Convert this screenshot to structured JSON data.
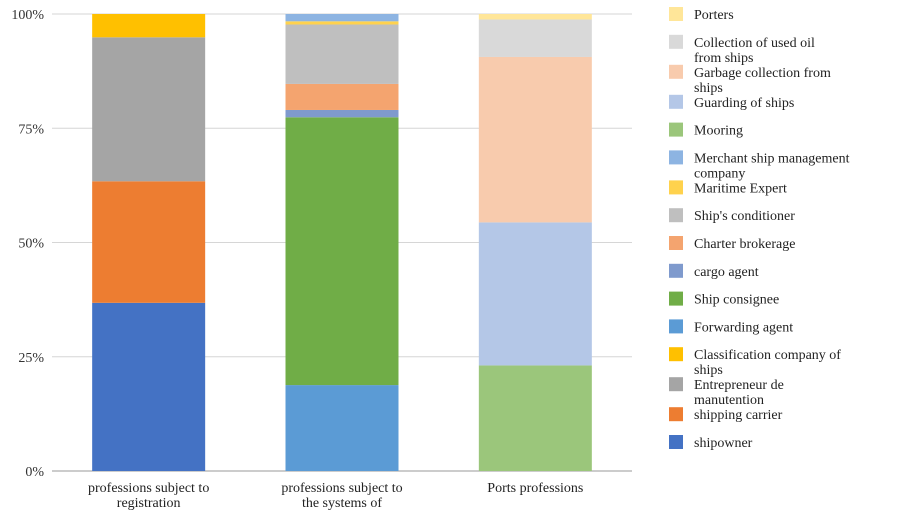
{
  "chart_data": {
    "type": "bar",
    "stacked": true,
    "normalized": true,
    "grid": true,
    "legend_placement": "right",
    "ylim": [
      0,
      100
    ],
    "yticks": [
      "0%",
      "25%",
      "50%",
      "75%",
      "100%"
    ],
    "categories": [
      "professions subject to registration",
      "professions subject to the systems of specifications",
      "Ports professions"
    ],
    "series": [
      {
        "name": "shipowner",
        "color": "#4472C4",
        "values": [
          36.8,
          0,
          0
        ]
      },
      {
        "name": "shipping carrier",
        "color": "#ED7D31",
        "values": [
          26.6,
          0,
          0
        ]
      },
      {
        "name": "Entrepreneur de manutention",
        "color": "#A5A5A5",
        "values": [
          31.5,
          0,
          0
        ]
      },
      {
        "name": "Classification company of ships",
        "color": "#FFC000",
        "values": [
          5.1,
          0,
          0
        ]
      },
      {
        "name": "Forwarding agent",
        "color": "#5B9BD5",
        "values": [
          0,
          18.8,
          0
        ]
      },
      {
        "name": "Ship consignee",
        "color": "#70AD47",
        "values": [
          0,
          58.6,
          0
        ]
      },
      {
        "name": "cargo agent",
        "color": "#7F9ACD",
        "values": [
          0,
          1.6,
          0
        ]
      },
      {
        "name": "Charter brokerage",
        "color": "#F4A46F",
        "values": [
          0,
          5.7,
          0
        ]
      },
      {
        "name": "Ship's conditioner",
        "color": "#BFBFBF",
        "values": [
          0,
          13.0,
          0
        ]
      },
      {
        "name": "Maritime Expert",
        "color": "#FFD24D",
        "values": [
          0,
          0.7,
          0
        ]
      },
      {
        "name": "Merchant ship management company",
        "color": "#8DB4E2",
        "values": [
          0,
          1.6,
          0
        ]
      },
      {
        "name": "Mooring",
        "color": "#9BC67B",
        "values": [
          0,
          0,
          23.1
        ]
      },
      {
        "name": "Guarding of ships",
        "color": "#B4C7E7",
        "values": [
          0,
          0,
          31.3
        ]
      },
      {
        "name": "Garbage collection from ships",
        "color": "#F8CBAD",
        "values": [
          0,
          0,
          36.2
        ]
      },
      {
        "name": "Collection of used oil from ships",
        "color": "#D9D9D9",
        "values": [
          0,
          0,
          8.2
        ]
      },
      {
        "name": "Porters",
        "color": "#FFE699",
        "values": [
          0,
          0,
          1.2
        ]
      }
    ]
  }
}
